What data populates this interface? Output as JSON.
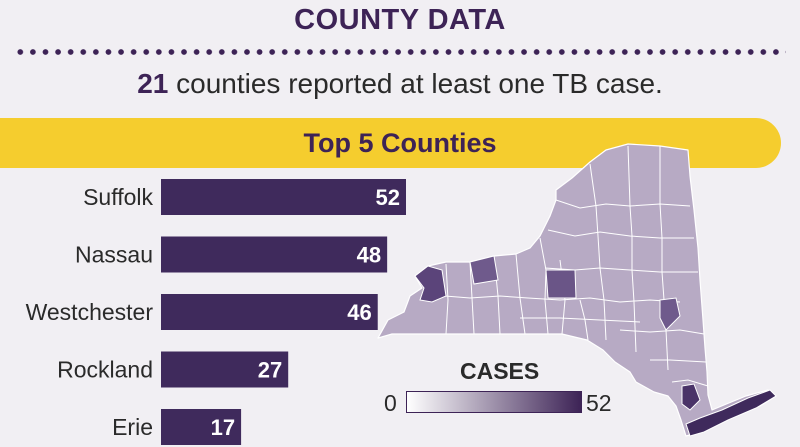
{
  "title": "COUNTY DATA",
  "stat": {
    "number": "21",
    "text": "counties reported at least one TB case."
  },
  "banner": {
    "label": "Top 5 Counties"
  },
  "colors": {
    "bar": "#3f2a5c",
    "accent": "#3d2356",
    "banner": "#f5cd2e",
    "map_fill": "#b7aac4",
    "map_stroke": "#ffffff"
  },
  "chart_data": {
    "type": "bar",
    "orientation": "horizontal",
    "categories": [
      "Suffolk",
      "Nassau",
      "Westchester",
      "Rockland",
      "Erie"
    ],
    "values": [
      52,
      48,
      46,
      27,
      17
    ]
  },
  "map_legend": {
    "title": "CASES",
    "min_label": "0",
    "max_label": "52",
    "min": 0,
    "max": 52
  }
}
